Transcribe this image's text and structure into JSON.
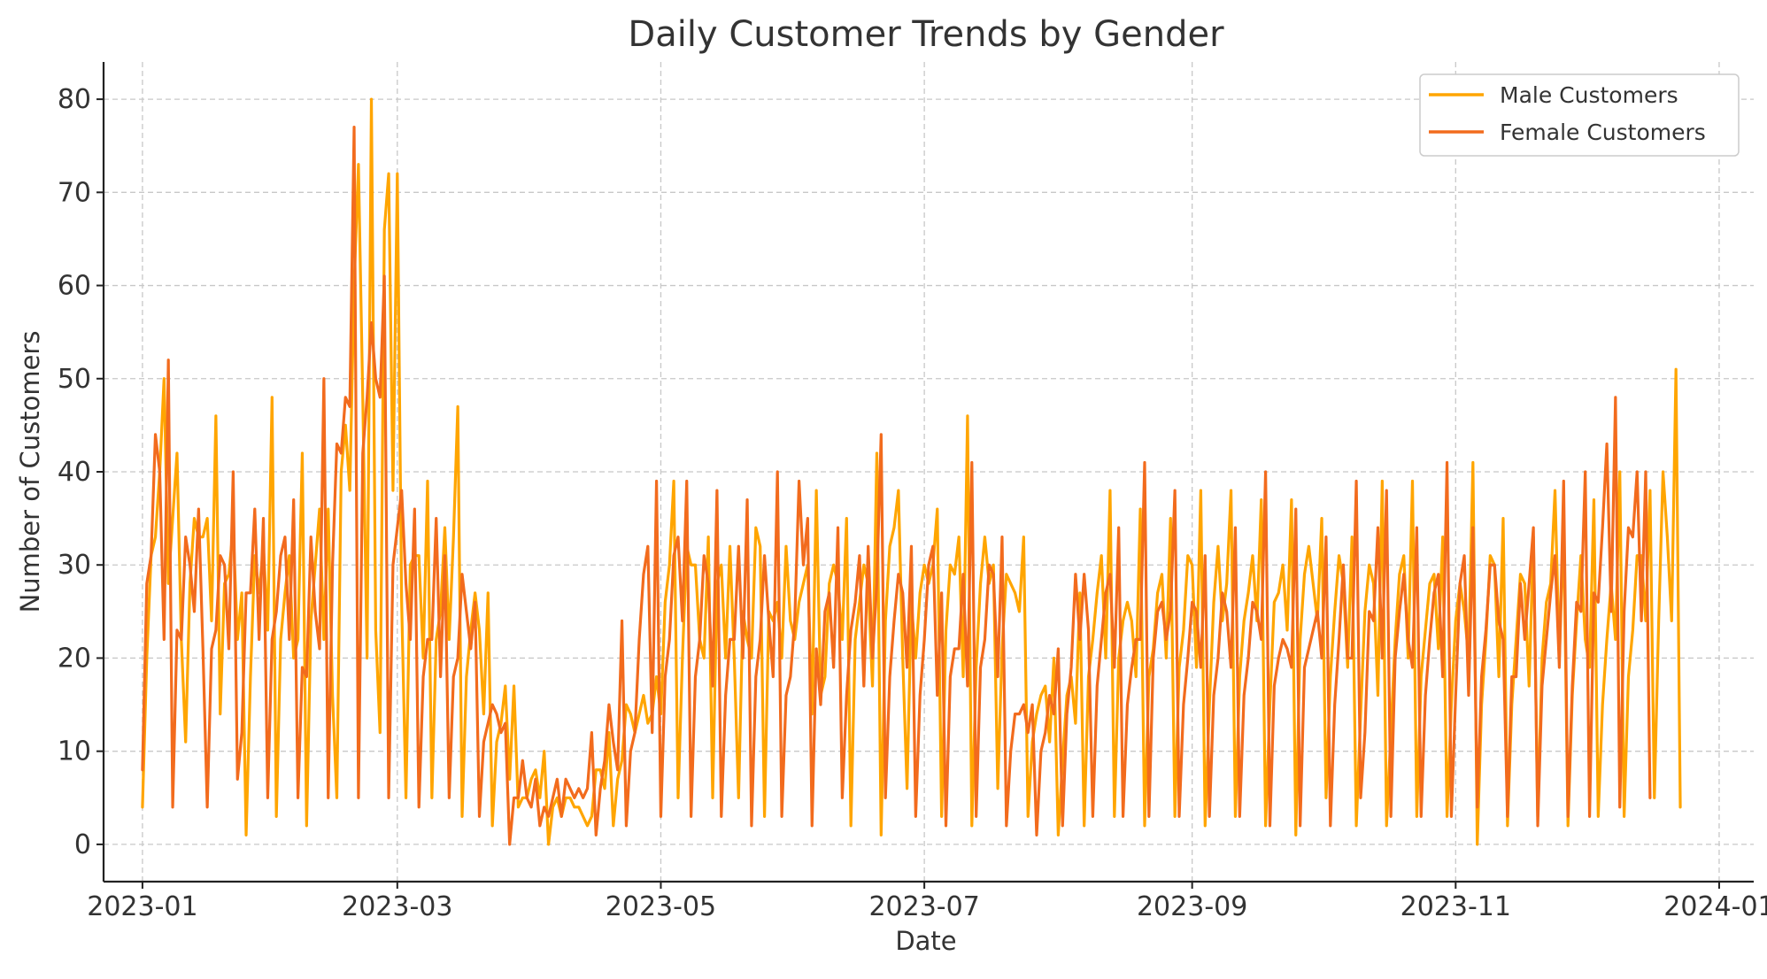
{
  "chart_data": {
    "type": "line",
    "title": "Daily Customer Trends by Gender",
    "xlabel": "Date",
    "ylabel": "Number of Customers",
    "x_tick_labels": [
      "2023-01",
      "2023-03",
      "2023-05",
      "2023-07",
      "2023-09",
      "2023-11",
      "2024-01"
    ],
    "y_ticks": [
      0,
      10,
      20,
      30,
      40,
      50,
      60,
      70,
      80
    ],
    "xlim": [
      "2022-12-23",
      "2024-01-09"
    ],
    "ylim": [
      -4,
      84
    ],
    "grid": true,
    "legend_position": "top-right",
    "series": [
      {
        "name": "Male Customers",
        "color": "#FFA500",
        "start_date": "2023-01-01",
        "values": [
          4,
          20,
          31,
          33,
          40,
          50,
          28,
          35,
          42,
          22,
          11,
          28,
          35,
          33,
          33,
          35,
          24,
          46,
          14,
          28,
          29,
          34,
          22,
          27,
          1,
          18,
          31,
          27,
          32,
          23,
          48,
          3,
          22,
          27,
          31,
          20,
          22,
          42,
          2,
          24,
          30,
          36,
          22,
          36,
          16,
          5,
          40,
          45,
          38,
          60,
          73,
          48,
          20,
          80,
          23,
          12,
          66,
          72,
          38,
          72,
          26,
          5,
          30,
          31,
          31,
          20,
          39,
          5,
          22,
          25,
          34,
          22,
          33,
          47,
          3,
          18,
          23,
          27,
          23,
          14,
          27,
          2,
          11,
          13,
          17,
          7,
          17,
          4,
          5,
          5,
          7,
          8,
          5,
          10,
          0,
          4,
          5,
          3,
          5,
          5,
          4,
          4,
          3,
          2,
          3,
          8,
          8,
          6,
          12,
          2,
          7,
          9,
          15,
          14,
          12,
          14,
          16,
          13,
          14,
          18,
          14,
          26,
          30,
          39,
          5,
          20,
          32,
          30,
          30,
          22,
          20,
          33,
          5,
          28,
          30,
          20,
          32,
          20,
          5,
          25,
          22,
          20,
          34,
          32,
          3,
          25,
          24,
          26,
          20,
          32,
          24,
          22,
          26,
          28,
          30,
          14,
          38,
          16,
          18,
          28,
          30,
          28,
          22,
          35,
          2,
          22,
          26,
          30,
          28,
          17,
          42,
          1,
          24,
          32,
          34,
          38,
          20,
          6,
          26,
          20,
          27,
          30,
          28,
          30,
          36,
          3,
          23,
          30,
          29,
          33,
          18,
          46,
          2,
          19,
          28,
          33,
          28,
          30,
          6,
          21,
          29,
          28,
          27,
          25,
          33,
          3,
          11,
          14,
          16,
          17,
          11,
          20,
          1,
          9,
          16,
          18,
          13,
          27,
          2,
          18,
          22,
          27,
          31,
          20,
          38,
          3,
          20,
          24,
          26,
          24,
          18,
          36,
          2,
          18,
          21,
          27,
          29,
          20,
          35,
          3,
          19,
          23,
          31,
          30,
          19,
          38,
          2,
          15,
          26,
          32,
          24,
          28,
          38,
          3,
          18,
          24,
          27,
          31,
          24,
          37,
          2,
          15,
          26,
          27,
          30,
          23,
          37,
          1,
          22,
          29,
          32,
          28,
          24,
          35,
          5,
          18,
          25,
          31,
          28,
          19,
          33,
          2,
          14,
          25,
          30,
          28,
          16,
          39,
          2,
          12,
          22,
          29,
          31,
          20,
          39,
          3,
          18,
          23,
          28,
          29,
          21,
          33,
          3,
          15,
          24,
          28,
          25,
          20,
          41,
          0,
          15,
          22,
          31,
          30,
          18,
          35,
          2,
          15,
          22,
          29,
          28,
          17,
          33,
          3,
          20,
          26,
          28,
          38,
          20,
          34,
          2,
          16,
          24,
          31,
          22,
          19,
          37,
          3,
          15,
          22,
          28,
          22,
          40,
          3,
          18,
          23,
          31,
          31,
          24,
          38,
          5,
          24,
          40,
          33,
          24,
          51,
          4
        ]
      },
      {
        "name": "Female Customers",
        "color": "#F26B1D",
        "start_date": "2023-01-01",
        "values": [
          8,
          28,
          31,
          44,
          40,
          22,
          52,
          4,
          23,
          22,
          33,
          30,
          25,
          36,
          21,
          4,
          21,
          23,
          31,
          30,
          21,
          40,
          7,
          12,
          27,
          27,
          36,
          22,
          35,
          5,
          22,
          25,
          31,
          33,
          22,
          37,
          5,
          19,
          18,
          33,
          25,
          21,
          50,
          5,
          30,
          43,
          42,
          48,
          47,
          77,
          5,
          42,
          48,
          56,
          50,
          48,
          61,
          5,
          30,
          34,
          38,
          28,
          22,
          36,
          4,
          18,
          22,
          22,
          35,
          18,
          31,
          5,
          18,
          20,
          29,
          25,
          21,
          26,
          3,
          11,
          13,
          15,
          14,
          12,
          13,
          0,
          5,
          5,
          9,
          5,
          4,
          7,
          2,
          4,
          3,
          5,
          7,
          3,
          7,
          6,
          5,
          6,
          5,
          6,
          12,
          1,
          6,
          9,
          15,
          11,
          8,
          24,
          2,
          10,
          12,
          22,
          29,
          32,
          12,
          39,
          3,
          18,
          22,
          31,
          33,
          24,
          39,
          3,
          18,
          22,
          31,
          28,
          17,
          38,
          3,
          16,
          22,
          22,
          32,
          20,
          37,
          2,
          18,
          22,
          31,
          24,
          18,
          40,
          3,
          16,
          18,
          24,
          39,
          30,
          35,
          2,
          21,
          15,
          25,
          27,
          19,
          34,
          5,
          16,
          23,
          26,
          31,
          17,
          32,
          20,
          28,
          44,
          5,
          18,
          24,
          29,
          27,
          19,
          32,
          3,
          16,
          22,
          30,
          32,
          16,
          27,
          2,
          18,
          21,
          21,
          29,
          17,
          41,
          3,
          19,
          22,
          30,
          29,
          18,
          33,
          2,
          10,
          14,
          14,
          15,
          12,
          15,
          1,
          10,
          12,
          16,
          14,
          21,
          2,
          14,
          19,
          29,
          22,
          29,
          23,
          3,
          17,
          22,
          27,
          29,
          19,
          34,
          3,
          15,
          19,
          22,
          22,
          41,
          3,
          20,
          25,
          26,
          22,
          25,
          38,
          3,
          15,
          20,
          26,
          25,
          19,
          31,
          3,
          16,
          20,
          27,
          25,
          19,
          34,
          3,
          16,
          20,
          26,
          25,
          22,
          40,
          2,
          17,
          20,
          22,
          21,
          19,
          36,
          2,
          19,
          21,
          23,
          25,
          20,
          33,
          2,
          15,
          22,
          30,
          20,
          20,
          39,
          5,
          12,
          25,
          24,
          34,
          20,
          38,
          3,
          20,
          25,
          29,
          22,
          19,
          34,
          3,
          16,
          22,
          27,
          29,
          18,
          41,
          3,
          16,
          28,
          31,
          16,
          34,
          4,
          18,
          23,
          30,
          30,
          24,
          22,
          3,
          18,
          18,
          28,
          22,
          28,
          34,
          2,
          17,
          22,
          27,
          31,
          19,
          39,
          3,
          17,
          26,
          25,
          40,
          3,
          27,
          26,
          34,
          43,
          25,
          48,
          4,
          25,
          34,
          33,
          40,
          24,
          40,
          5
        ]
      }
    ]
  }
}
